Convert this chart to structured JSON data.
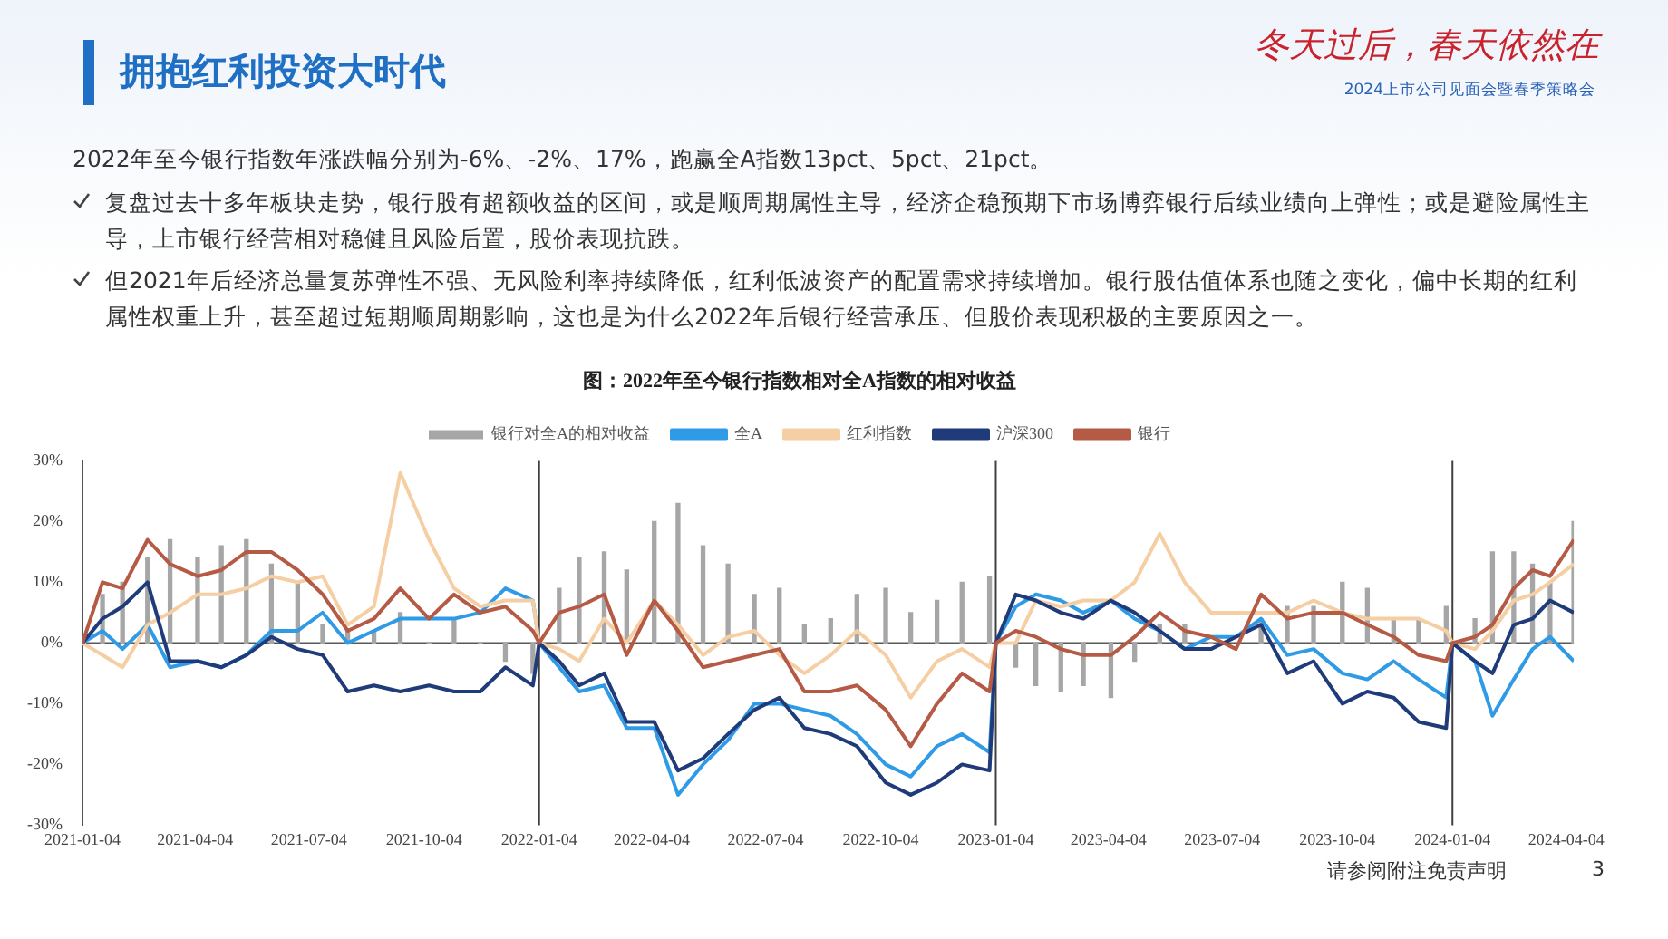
{
  "chart_data": {
    "type": "line",
    "title": "图：2022年至今银行指数相对全A指数的相对收益",
    "annotations": [
      "拥抱红利投资大时代",
      "冬天过后，春天依然在",
      "2024上市公司见面会暨春季策略会",
      "2022年至今银行指数年涨跌幅分别为-6%、-2%、17%，跑赢全A指数13pct、5pct、21pct。",
      "复盘过去十多年板块走势，银行股有超额收益的区间，或是顺周期属性主导，经济企稳预期下市场博弈银行后续业绩向上弹性；或是避险属性主导，上市银行经营相对稳健且风险后置，股价表现抗跌。",
      "但2021年后经济总量复苏弹性不强、无风险利率持续降低，红利低波资产的配置需求持续增加。银行股估值体系也随之变化，偏中长期的红利属性权重上升，甚至超过短期顺周期影响，这也是为什么2022年后银行经营承压、但股价表现积极的主要原因之一。",
      "请参阅附注免责声明",
      "3"
    ],
    "x": [
      "2021-01-04",
      "2021-01-20",
      "2021-02-05",
      "2021-02-25",
      "2021-03-15",
      "2021-04-06",
      "2021-04-25",
      "2021-05-15",
      "2021-06-04",
      "2021-06-25",
      "2021-07-15",
      "2021-08-04",
      "2021-08-25",
      "2021-09-15",
      "2021-10-08",
      "2021-10-28",
      "2021-11-18",
      "2021-12-08",
      "2021-12-30",
      "2022-01-04",
      "2022-01-20",
      "2022-02-05",
      "2022-02-25",
      "2022-03-15",
      "2022-04-06",
      "2022-04-25",
      "2022-05-15",
      "2022-06-04",
      "2022-06-25",
      "2022-07-15",
      "2022-08-04",
      "2022-08-25",
      "2022-09-15",
      "2022-10-08",
      "2022-10-28",
      "2022-11-18",
      "2022-12-08",
      "2022-12-30",
      "2023-01-04",
      "2023-01-20",
      "2023-02-05",
      "2023-02-25",
      "2023-03-15",
      "2023-04-06",
      "2023-04-25",
      "2023-05-15",
      "2023-06-04",
      "2023-06-25",
      "2023-07-15",
      "2023-08-04",
      "2023-08-25",
      "2023-09-15",
      "2023-10-08",
      "2023-10-28",
      "2023-11-18",
      "2023-12-08",
      "2023-12-30",
      "2024-01-04",
      "2024-01-22",
      "2024-02-05",
      "2024-02-22",
      "2024-03-08",
      "2024-03-22",
      "2024-04-10"
    ],
    "series": [
      {
        "name": "银行对全A的相对收益",
        "type": "bar",
        "color": "#a6a6a6",
        "values": [
          0,
          8,
          10,
          14,
          17,
          14,
          16,
          17,
          13,
          10,
          3,
          2,
          2,
          5,
          0,
          4,
          0,
          -3,
          -5,
          0,
          9,
          14,
          15,
          12,
          20,
          23,
          16,
          13,
          8,
          9,
          3,
          4,
          8,
          9,
          5,
          7,
          10,
          11,
          0,
          -4,
          -7,
          -8,
          -7,
          -9,
          -3,
          3,
          3,
          0,
          null,
          4,
          6,
          6,
          10,
          9,
          4,
          4,
          6,
          0,
          4,
          15,
          15,
          13,
          10,
          20
        ]
      },
      {
        "name": "全A",
        "color": "#2f9be6",
        "values": [
          0,
          2,
          -1,
          3,
          -4,
          -3,
          -4,
          -2,
          2,
          2,
          5,
          0,
          2,
          4,
          4,
          4,
          5,
          9,
          7,
          0,
          -4,
          -8,
          -7,
          -14,
          -14,
          -25,
          -20,
          -16,
          -10,
          -10,
          -11,
          -12,
          -15,
          -20,
          -22,
          -17,
          -15,
          -18,
          0,
          6,
          8,
          7,
          5,
          7,
          4,
          2,
          -1,
          1,
          1,
          4,
          -2,
          -1,
          -5,
          -6,
          -3,
          -6,
          -9,
          0,
          -3,
          -12,
          -6,
          -1,
          1,
          -3
        ]
      },
      {
        "name": "红利指数",
        "color": "#f5cfa3",
        "values": [
          0,
          -2,
          -4,
          3,
          5,
          8,
          8,
          9,
          11,
          10,
          11,
          3,
          6,
          28,
          17,
          9,
          6,
          7,
          7,
          0,
          -1,
          -3,
          4,
          0,
          7,
          3,
          -2,
          1,
          2,
          -2,
          -5,
          -2,
          2,
          -2,
          -9,
          -3,
          -1,
          -4,
          0,
          0,
          7,
          6,
          7,
          7,
          10,
          18,
          10,
          5,
          5,
          5,
          5,
          7,
          5,
          4,
          4,
          4,
          2,
          0,
          -1,
          2,
          7,
          8,
          10,
          13
        ]
      },
      {
        "name": "沪深300",
        "color": "#1f3b7a",
        "values": [
          0,
          4,
          6,
          10,
          -3,
          -3,
          -4,
          -2,
          1,
          -1,
          -2,
          -8,
          -7,
          -8,
          -7,
          -8,
          -8,
          -4,
          -7,
          0,
          -3,
          -7,
          -5,
          -13,
          -13,
          -21,
          -19,
          -15,
          -11,
          -9,
          -14,
          -15,
          -17,
          -23,
          -25,
          -23,
          -20,
          -21,
          0,
          8,
          7,
          5,
          4,
          7,
          5,
          2,
          -1,
          -1,
          1,
          3,
          -5,
          -3,
          -10,
          -8,
          -9,
          -13,
          -14,
          0,
          -3,
          -5,
          3,
          4,
          7,
          5
        ]
      },
      {
        "name": "银行",
        "color": "#b55a44",
        "values": [
          0,
          10,
          9,
          17,
          13,
          11,
          12,
          15,
          15,
          12,
          8,
          2,
          4,
          9,
          4,
          8,
          5,
          6,
          2,
          0,
          5,
          6,
          8,
          -2,
          7,
          2,
          -4,
          -3,
          -2,
          -1,
          -8,
          -8,
          -7,
          -11,
          -17,
          -10,
          -5,
          -8,
          0,
          2,
          1,
          -1,
          -2,
          -2,
          1,
          5,
          2,
          1,
          -1,
          8,
          4,
          5,
          5,
          3,
          1,
          -2,
          -3,
          0,
          1,
          3,
          9,
          12,
          11,
          17
        ]
      }
    ],
    "xlim": [
      "2021-01-04",
      "2024-04-10"
    ],
    "xticks": [
      "2021-01-04",
      "2021-04-04",
      "2021-07-04",
      "2021-10-04",
      "2022-01-04",
      "2022-04-04",
      "2022-07-04",
      "2022-10-04",
      "2023-01-04",
      "2023-04-04",
      "2023-07-04",
      "2023-10-04",
      "2024-01-04",
      "2024-04-04"
    ],
    "ylim": [
      -30,
      30
    ],
    "yticks": [
      {
        "value": -30,
        "label": "-30%"
      },
      {
        "value": -20,
        "label": "-20%"
      },
      {
        "value": -10,
        "label": "-10%"
      },
      {
        "value": 0,
        "label": "0%"
      },
      {
        "value": 10,
        "label": "10%"
      },
      {
        "value": 20,
        "label": "20%"
      },
      {
        "value": 30,
        "label": "30%"
      }
    ],
    "ref_lines": [
      {
        "axis": "y",
        "value": 0,
        "color": "#595959"
      },
      {
        "axis": "x",
        "value": "2022-01-04",
        "color": "#404040"
      },
      {
        "axis": "x",
        "value": "2023-01-04",
        "color": "#404040"
      },
      {
        "axis": "x",
        "value": "2024-01-04",
        "color": "#404040"
      }
    ],
    "grid": false,
    "legend": "top",
    "marker": "none",
    "line_style": "solid"
  }
}
